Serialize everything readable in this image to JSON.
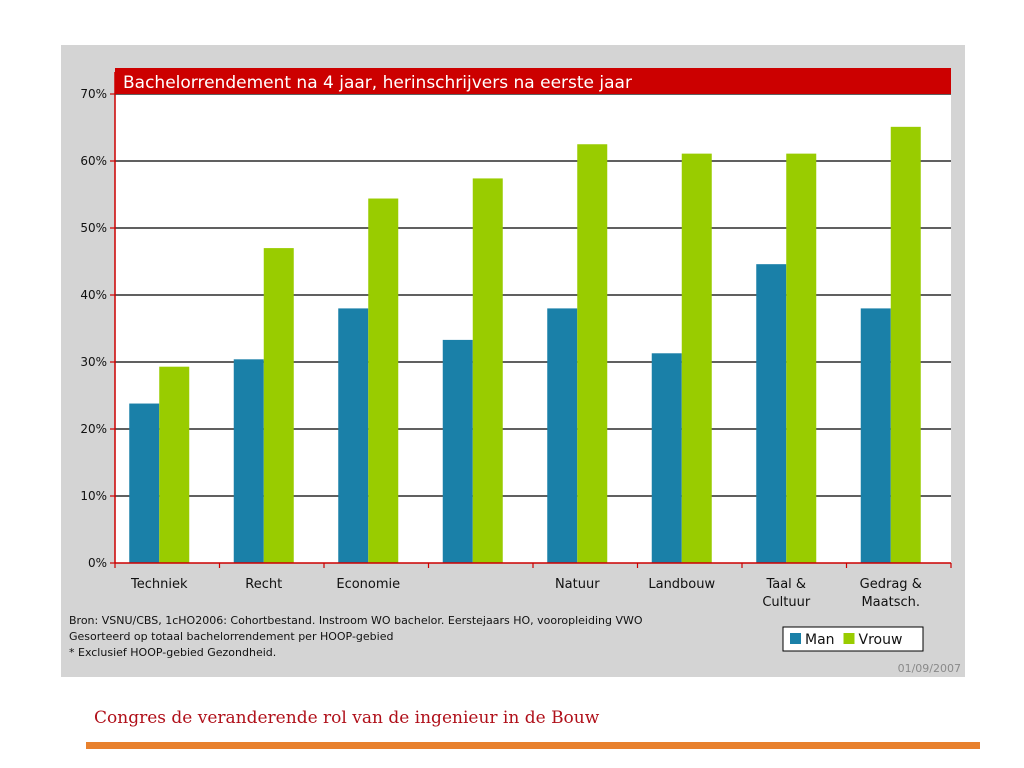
{
  "chart_data": {
    "type": "bar",
    "title": "Bachelorrendement na 4 jaar, herinschrijvers na eerste jaar",
    "categories": [
      [
        "Techniek"
      ],
      [
        "Recht"
      ],
      [
        "Economie"
      ],
      [
        ""
      ],
      [
        "Natuur"
      ],
      [
        "Landbouw"
      ],
      [
        "Taal &",
        "Cultuur"
      ],
      [
        "Gedrag &",
        "Maatsch."
      ]
    ],
    "series": [
      {
        "name": "Man",
        "color": "#1a80a8",
        "values": [
          23.8,
          30.4,
          38.0,
          33.3,
          38.0,
          31.3,
          44.6,
          38.0
        ]
      },
      {
        "name": "Vrouw",
        "color": "#99cc00",
        "values": [
          29.3,
          47.0,
          54.4,
          57.4,
          62.5,
          61.1,
          61.1,
          65.1
        ]
      }
    ],
    "ylim": [
      0,
      70
    ],
    "yticks": [
      "0%",
      "10%",
      "20%",
      "30%",
      "40%",
      "50%",
      "60%",
      "70%"
    ],
    "xlabel": "",
    "ylabel": "",
    "grid": true,
    "legend": "bottom-right",
    "source_lines": [
      "Bron: VSNU/CBS, 1cHO2006: Cohortbestand. Instroom WO bachelor. Eerstejaars HO, vooropleiding VWO",
      "Gesorteerd op totaal bachelorrendement per HOOP-gebied",
      "* Exclusief HOOP-gebied Gezondheid."
    ],
    "date": "01/09/2007",
    "title_bar_color": "#cc0000",
    "axis_color": "#cc0000"
  },
  "footer": {
    "title": "Congres de veranderende rol van de ingenieur in de Bouw",
    "title_color": "#b0101a",
    "rule_color": "#e8812e"
  }
}
